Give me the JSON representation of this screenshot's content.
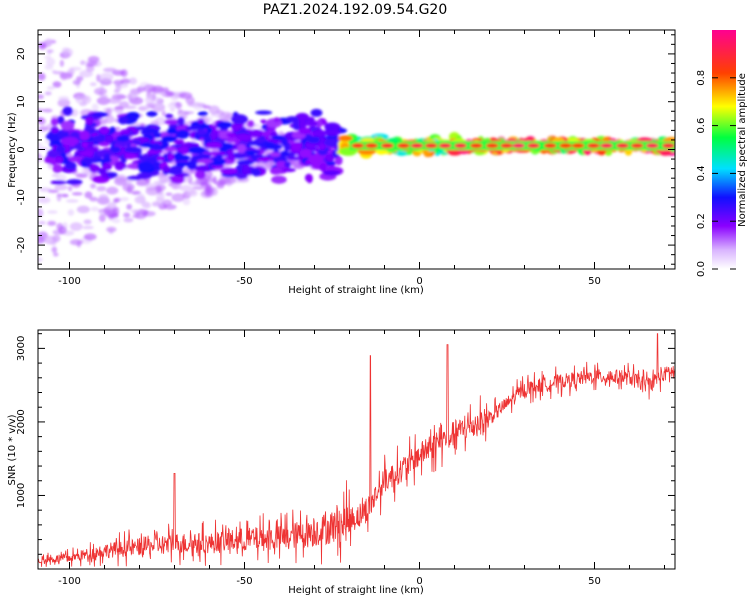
{
  "title": "PAZ1.2024.192.09.54.G20",
  "chart_data": [
    {
      "type": "heatmap",
      "xlabel": "Height of straight line (km)",
      "ylabel": "Frequency (Hz)",
      "xlim": [
        -109,
        73
      ],
      "ylim": [
        -25,
        25
      ],
      "xticks": [
        -100,
        -50,
        0,
        50
      ],
      "yticks": [
        -20,
        -10,
        0,
        10,
        20
      ],
      "colorbar": {
        "label": "Normalized spectral amplitude",
        "range": [
          0,
          1
        ],
        "ticks": [
          "0.0",
          "0.2",
          "0.4",
          "0.6",
          "0.8"
        ],
        "colormap": "white-purple-blue-cyan-green-yellow-red-magenta"
      },
      "ridge": {
        "description": "dominant frequency ridge",
        "freq_hz": 0.8,
        "segments": [
          {
            "x_start": -105,
            "x_end": -22,
            "freq_spread_hz": 8,
            "amplitude": 0.25
          },
          {
            "x_start": -22,
            "x_end": 10,
            "freq_spread_hz": 2,
            "amplitude": 0.7
          },
          {
            "x_start": 10,
            "x_end": 73,
            "freq_spread_hz": 1.5,
            "amplitude": 0.85
          }
        ]
      }
    },
    {
      "type": "line",
      "xlabel": "Height of straight line (km)",
      "ylabel": "SNR (10 * v/v)",
      "xlim": [
        -109,
        73
      ],
      "ylim": [
        0,
        3250
      ],
      "xticks": [
        -100,
        -50,
        0,
        50
      ],
      "yticks": [
        1000,
        2000,
        3000
      ],
      "color": "#ee3333",
      "trend": {
        "x": [
          -109,
          -100,
          -90,
          -80,
          -70,
          -60,
          -50,
          -40,
          -30,
          -20,
          -15,
          -10,
          -5,
          0,
          5,
          10,
          20,
          25,
          30,
          40,
          50,
          60,
          65,
          70,
          73
        ],
        "y": [
          120,
          150,
          250,
          300,
          350,
          350,
          400,
          420,
          500,
          650,
          800,
          1200,
          1350,
          1550,
          1700,
          1850,
          2050,
          2250,
          2450,
          2550,
          2620,
          2600,
          2500,
          2650,
          2700
        ]
      },
      "spikes": [
        {
          "x": -70,
          "y": 1300
        },
        {
          "x": -14,
          "y": 2900
        },
        {
          "x": 8,
          "y": 3050
        },
        {
          "x": 68,
          "y": 3200
        }
      ]
    }
  ]
}
